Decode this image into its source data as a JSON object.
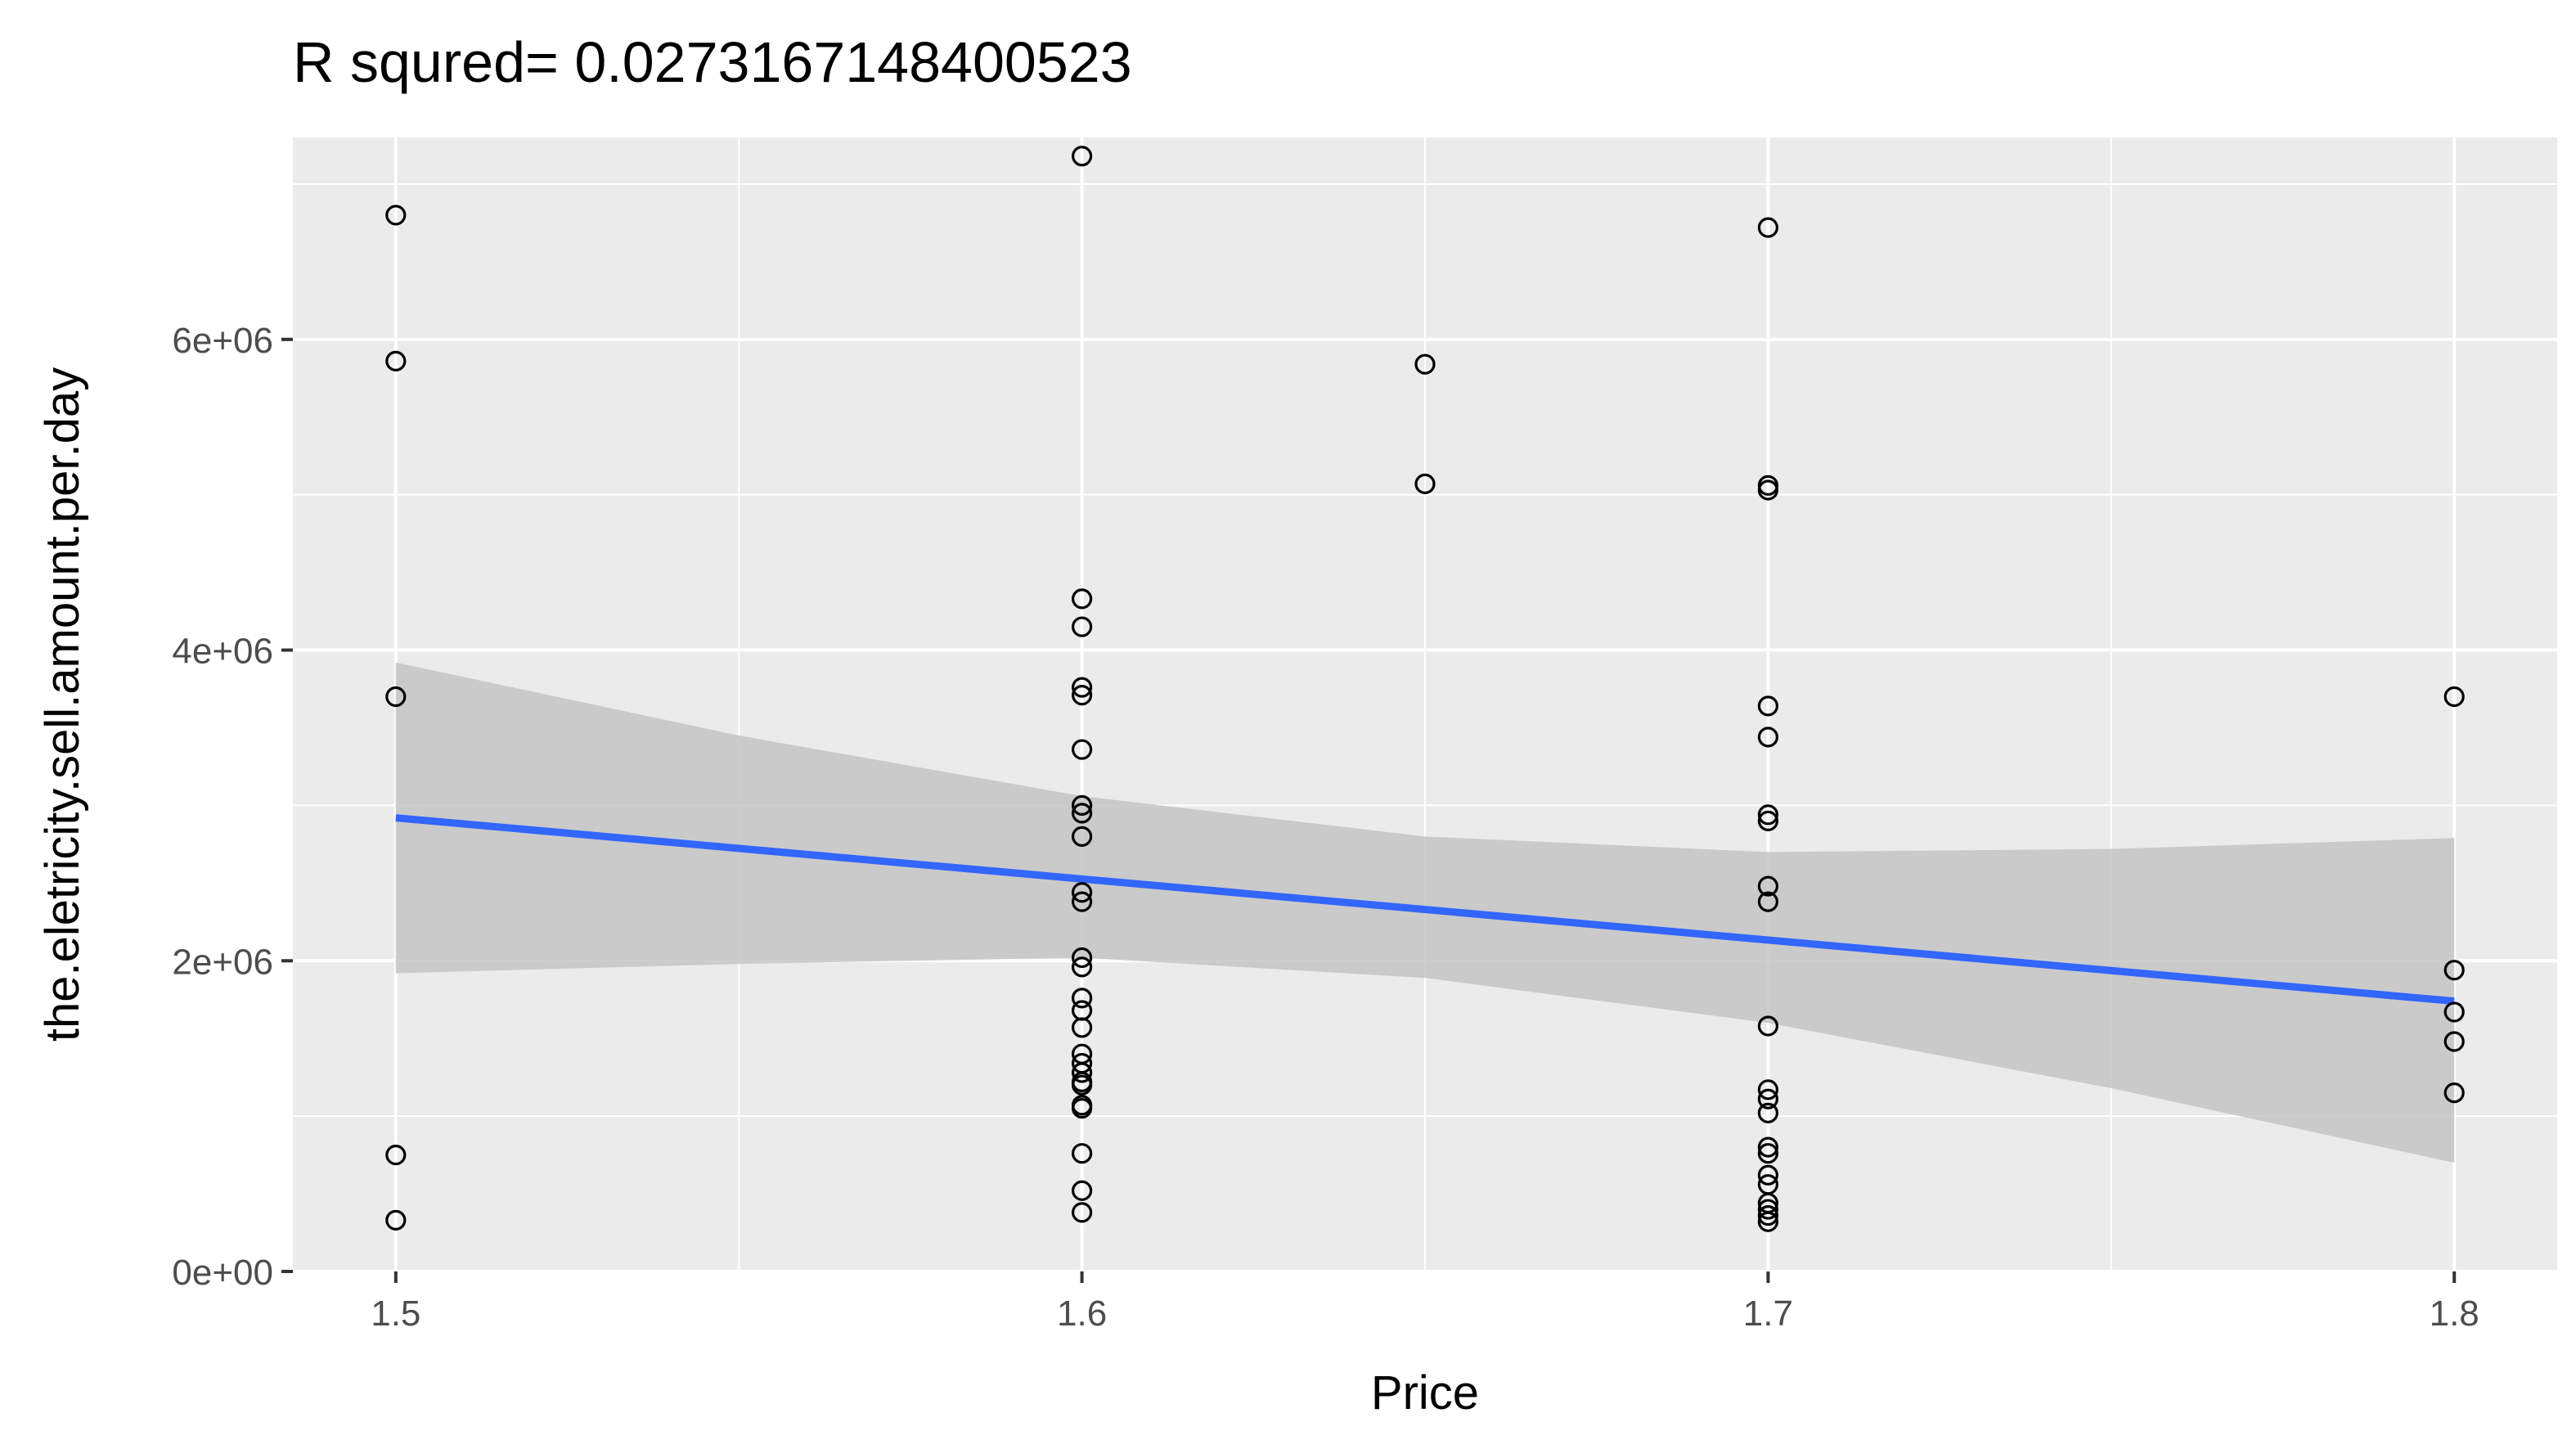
{
  "chart_data": {
    "type": "scatter",
    "title": "R squred= 0.0273167148400523",
    "xlabel": "Price",
    "ylabel": "the.eletricity.sell.amount.per.day",
    "xlim": [
      1.485,
      1.815
    ],
    "ylim": [
      0,
      7300000
    ],
    "x_ticks": [
      1.5,
      1.6,
      1.7,
      1.8
    ],
    "x_tick_labels": [
      "1.5",
      "1.6",
      "1.7",
      "1.8"
    ],
    "y_ticks": [
      0,
      2000000,
      4000000,
      6000000
    ],
    "y_tick_labels": [
      "0e+00",
      "2e+06",
      "4e+06",
      "6e+06"
    ],
    "grid": true,
    "panel_background": "#ebebeb",
    "grid_color": "#ffffff",
    "point_color": "#000000",
    "fit_color": "#3366ff",
    "ribbon_color": "#c4c4c4",
    "points": [
      {
        "x": 1.5,
        "y": 6800000
      },
      {
        "x": 1.5,
        "y": 5860000
      },
      {
        "x": 1.5,
        "y": 3700000
      },
      {
        "x": 1.5,
        "y": 750000
      },
      {
        "x": 1.5,
        "y": 330000
      },
      {
        "x": 1.6,
        "y": 7180000
      },
      {
        "x": 1.6,
        "y": 4330000
      },
      {
        "x": 1.6,
        "y": 4150000
      },
      {
        "x": 1.6,
        "y": 3760000
      },
      {
        "x": 1.6,
        "y": 3710000
      },
      {
        "x": 1.6,
        "y": 3360000
      },
      {
        "x": 1.6,
        "y": 3000000
      },
      {
        "x": 1.6,
        "y": 2950000
      },
      {
        "x": 1.6,
        "y": 2800000
      },
      {
        "x": 1.6,
        "y": 2440000
      },
      {
        "x": 1.6,
        "y": 2380000
      },
      {
        "x": 1.6,
        "y": 2020000
      },
      {
        "x": 1.6,
        "y": 1960000
      },
      {
        "x": 1.6,
        "y": 1760000
      },
      {
        "x": 1.6,
        "y": 1680000
      },
      {
        "x": 1.6,
        "y": 1570000
      },
      {
        "x": 1.6,
        "y": 1400000
      },
      {
        "x": 1.6,
        "y": 1340000
      },
      {
        "x": 1.6,
        "y": 1280000
      },
      {
        "x": 1.6,
        "y": 1220000
      },
      {
        "x": 1.6,
        "y": 1200000
      },
      {
        "x": 1.6,
        "y": 1070000
      },
      {
        "x": 1.6,
        "y": 1050000
      },
      {
        "x": 1.6,
        "y": 760000
      },
      {
        "x": 1.6,
        "y": 520000
      },
      {
        "x": 1.6,
        "y": 380000
      },
      {
        "x": 1.65,
        "y": 5840000
      },
      {
        "x": 1.65,
        "y": 5070000
      },
      {
        "x": 1.7,
        "y": 6720000
      },
      {
        "x": 1.7,
        "y": 5060000
      },
      {
        "x": 1.7,
        "y": 5030000
      },
      {
        "x": 1.7,
        "y": 3640000
      },
      {
        "x": 1.7,
        "y": 3440000
      },
      {
        "x": 1.7,
        "y": 2940000
      },
      {
        "x": 1.7,
        "y": 2900000
      },
      {
        "x": 1.7,
        "y": 2480000
      },
      {
        "x": 1.7,
        "y": 2380000
      },
      {
        "x": 1.7,
        "y": 1580000
      },
      {
        "x": 1.7,
        "y": 1170000
      },
      {
        "x": 1.7,
        "y": 1110000
      },
      {
        "x": 1.7,
        "y": 1020000
      },
      {
        "x": 1.7,
        "y": 800000
      },
      {
        "x": 1.7,
        "y": 760000
      },
      {
        "x": 1.7,
        "y": 620000
      },
      {
        "x": 1.7,
        "y": 560000
      },
      {
        "x": 1.7,
        "y": 440000
      },
      {
        "x": 1.7,
        "y": 400000
      },
      {
        "x": 1.7,
        "y": 360000
      },
      {
        "x": 1.7,
        "y": 320000
      },
      {
        "x": 1.8,
        "y": 3700000
      },
      {
        "x": 1.8,
        "y": 1940000
      },
      {
        "x": 1.8,
        "y": 1670000
      },
      {
        "x": 1.8,
        "y": 1480000
      },
      {
        "x": 1.8,
        "y": 1150000
      }
    ],
    "fit_line": {
      "x": [
        1.5,
        1.8
      ],
      "y": [
        2920000,
        1740000
      ]
    },
    "confidence_band": {
      "x": [
        1.5,
        1.55,
        1.6,
        1.65,
        1.7,
        1.75,
        1.8
      ],
      "upper": [
        3920000,
        3450000,
        3060000,
        2800000,
        2700000,
        2720000,
        2790000
      ],
      "lower": [
        1920000,
        1980000,
        2020000,
        1890000,
        1600000,
        1180000,
        700000
      ]
    }
  }
}
